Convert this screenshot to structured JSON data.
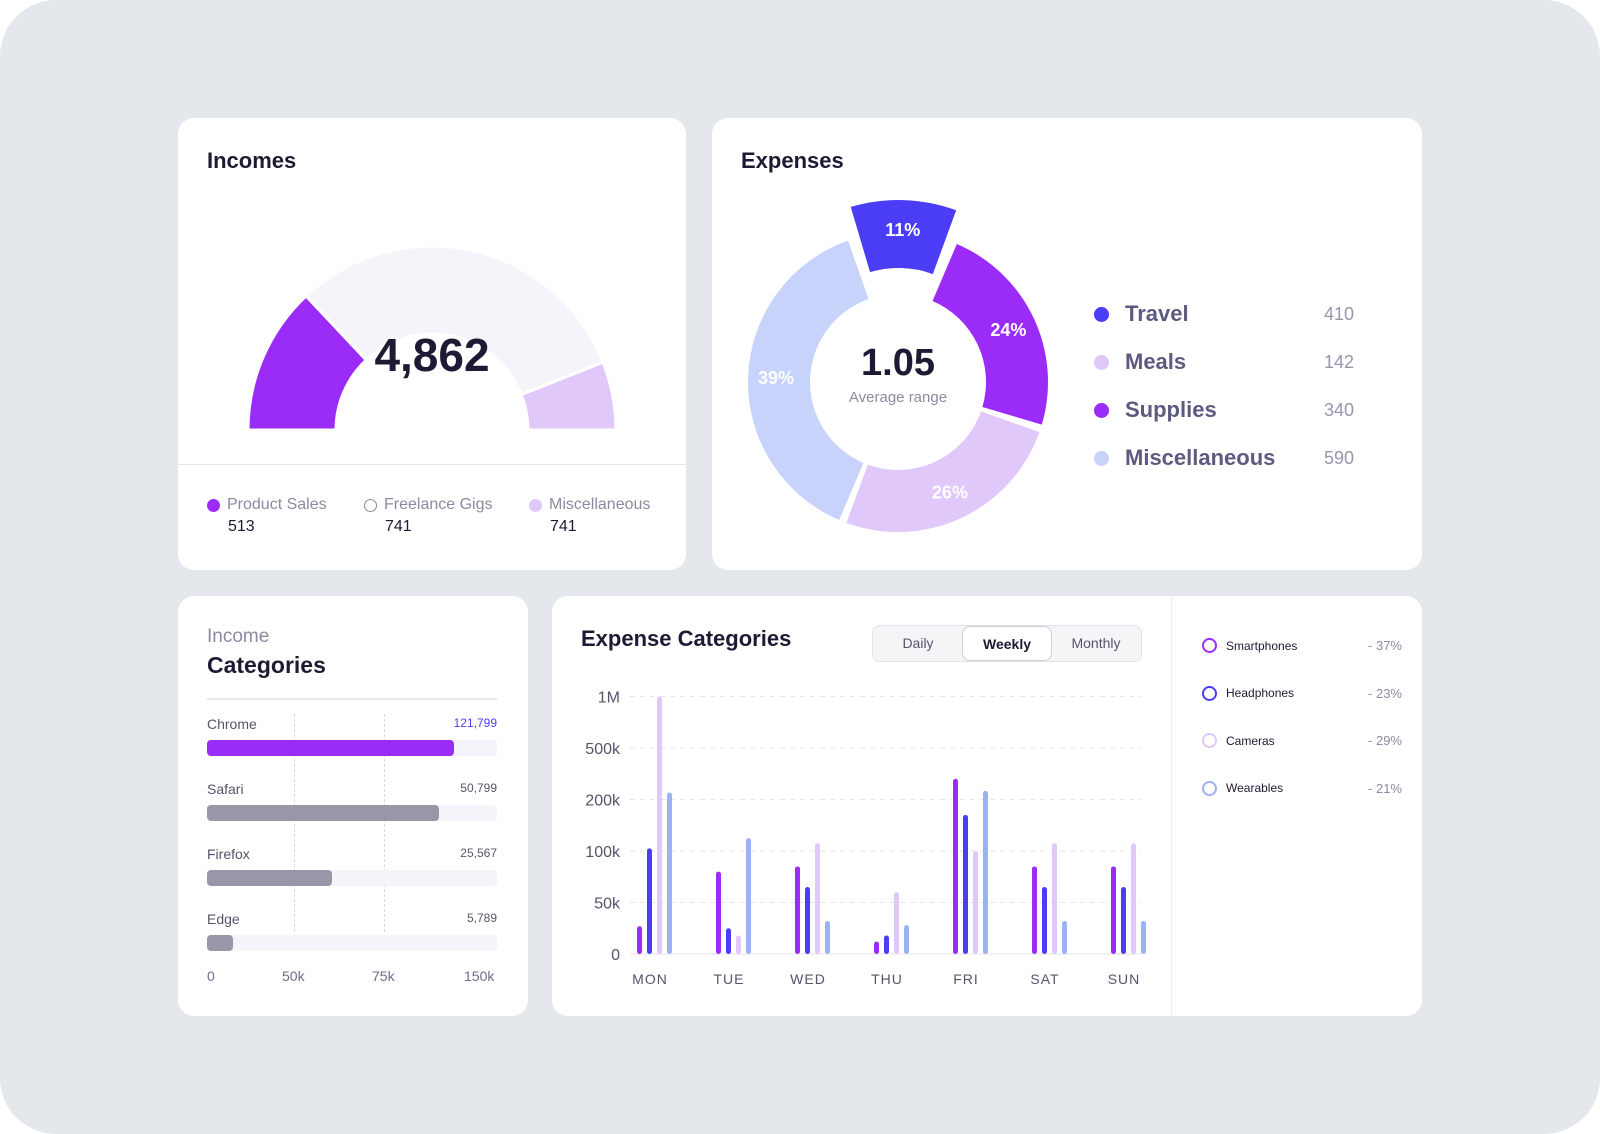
{
  "colors": {
    "purple": "#9b2cf7",
    "blue": "#4b3cf5",
    "lavender": "#e0c8fb",
    "periwinkle": "#c8d3fb",
    "light_blue": "#9cb2f2",
    "gray_bar": "#9897a8",
    "track": "#f4f3fa"
  },
  "incomes": {
    "title": "Incomes",
    "total": "4,862",
    "gauge": [
      {
        "name": "Product Sales",
        "fraction": 0.26,
        "color": "#9b2cf7"
      },
      {
        "name": "Freelance Gigs",
        "fraction": 0.62,
        "color": "#f5f4fa"
      },
      {
        "name": "Miscellaneous",
        "fraction": 0.12,
        "color": "#e0c8fb"
      }
    ],
    "legend": [
      {
        "label": "Product Sales",
        "value": "513",
        "style": "filled",
        "color": "#9b2cf7"
      },
      {
        "label": "Freelance Gigs",
        "value": "741",
        "style": "outline",
        "color": "#8b8aa0"
      },
      {
        "label": "Miscellaneous",
        "value": "741",
        "style": "filled",
        "color": "#e0c8fb"
      }
    ]
  },
  "expenses": {
    "title": "Expenses",
    "center_value": "1.05",
    "center_label": "Average range",
    "legend": [
      {
        "label": "Travel",
        "value": "410",
        "color": "#4b3cf5"
      },
      {
        "label": "Meals",
        "value": "142",
        "color": "#e0c8fb"
      },
      {
        "label": "Supplies",
        "value": "340",
        "color": "#9b2cf7"
      },
      {
        "label": "Miscellaneous",
        "value": "590",
        "color": "#c8d3fb"
      }
    ]
  },
  "income_categories": {
    "subtitle": "Income",
    "title": "Categories",
    "axis_ticks": [
      "0",
      "50k",
      "75k",
      "150k"
    ],
    "rows": [
      {
        "name": "Chrome",
        "value": "121,799",
        "fraction": 0.85,
        "color": "#9b2cf7",
        "value_color": "#4b3cf5"
      },
      {
        "name": "Safari",
        "value": "50,799",
        "fraction": 0.8,
        "color": "#9897a8",
        "value_color": "#55546b"
      },
      {
        "name": "Firefox",
        "value": "25,567",
        "fraction": 0.43,
        "color": "#9897a8",
        "value_color": "#55546b"
      },
      {
        "name": "Edge",
        "value": "5,789",
        "fraction": 0.09,
        "color": "#9897a8",
        "value_color": "#55546b"
      }
    ]
  },
  "expense_categories": {
    "title": "Expense Categories",
    "tabs": [
      {
        "label": "Daily",
        "active": false
      },
      {
        "label": "Weekly",
        "active": true
      },
      {
        "label": "Monthly",
        "active": false
      }
    ],
    "legend": [
      {
        "label": "Smartphones",
        "value": "- 37%",
        "color": "#9b2cf7"
      },
      {
        "label": "Headphones",
        "value": "- 23%",
        "color": "#4b3cf5"
      },
      {
        "label": "Cameras",
        "value": "- 29%",
        "color": "#e0c8fb"
      },
      {
        "label": "Wearables",
        "value": "- 21%",
        "color": "#9cb2f2"
      }
    ]
  },
  "chart_data": [
    {
      "type": "pie",
      "center_value": "1.05",
      "center_label": "Average range",
      "labels": [
        "Travel",
        "Supplies",
        "Meals",
        "Miscellaneous"
      ],
      "values": [
        11,
        24,
        26,
        39
      ],
      "value_labels": [
        "11%",
        "24%",
        "26%",
        "39%"
      ],
      "colors": [
        "#4b3cf5",
        "#9b2cf7",
        "#e0c8fb",
        "#c8d3fb"
      ]
    },
    {
      "type": "bar",
      "title": "Expense Categories",
      "categories": [
        "MON",
        "TUE",
        "WED",
        "THU",
        "FRI",
        "SAT",
        "SUN"
      ],
      "y_ticks": [
        "0",
        "50k",
        "100k",
        "200k",
        "500k",
        "1M"
      ],
      "ylim": [
        0,
        1000000
      ],
      "y_scale": "nonlinear (ticks 0, 50k, 100k, 200k, 500k, 1M equally spaced)",
      "grid": true,
      "series": [
        {
          "name": "Smartphones",
          "color": "#9b2cf7",
          "values": [
            27000,
            80000,
            85000,
            12000,
            320000,
            85000,
            85000
          ]
        },
        {
          "name": "Headphones",
          "color": "#4b3cf5",
          "values": [
            105000,
            25000,
            65000,
            18000,
            170000,
            65000,
            65000
          ]
        },
        {
          "name": "Cameras",
          "color": "#e0c8fb",
          "values": [
            1000000,
            18000,
            115000,
            60000,
            100000,
            115000,
            115000
          ]
        },
        {
          "name": "Wearables",
          "color": "#9cb2f2",
          "values": [
            240000,
            125000,
            32000,
            28000,
            250000,
            32000,
            32000
          ]
        }
      ]
    }
  ]
}
